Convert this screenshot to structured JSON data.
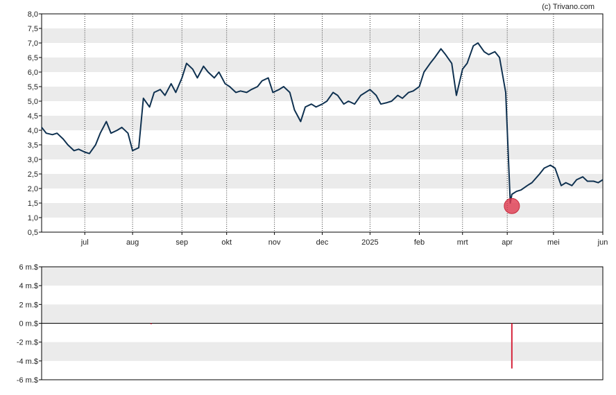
{
  "credit": "(c) Trivano.com",
  "colors": {
    "line": "#0f3150",
    "band": "#ebebeb",
    "marker": "#e03a4f",
    "volume_bar": "#d6243b",
    "frame": "#000000"
  },
  "chart_data": [
    {
      "type": "line",
      "title": "",
      "xlabel": "",
      "ylabel": "",
      "ylim": [
        0.5,
        8.0
      ],
      "y_ticks": [
        "0,5",
        "1,0",
        "1,5",
        "2,0",
        "2,5",
        "3,0",
        "3,5",
        "4,0",
        "4,5",
        "5,0",
        "5,5",
        "6,0",
        "6,5",
        "7,0",
        "7,5",
        "8,0"
      ],
      "y_tick_values": [
        0.5,
        1.0,
        1.5,
        2.0,
        2.5,
        3.0,
        3.5,
        4.0,
        4.5,
        5.0,
        5.5,
        6.0,
        6.5,
        7.0,
        7.5,
        8.0
      ],
      "x_range": [
        "2024-06-03",
        "2025-06-02"
      ],
      "x_ticks": [
        {
          "label": "jul",
          "date": "2024-07-01"
        },
        {
          "label": "aug",
          "date": "2024-08-01"
        },
        {
          "label": "sep",
          "date": "2024-09-02"
        },
        {
          "label": "okt",
          "date": "2024-10-01"
        },
        {
          "label": "nov",
          "date": "2024-11-01"
        },
        {
          "label": "dec",
          "date": "2024-12-02"
        },
        {
          "label": "2025",
          "date": "2025-01-02"
        },
        {
          "label": "feb",
          "date": "2025-02-03"
        },
        {
          "label": "mrt",
          "date": "2025-03-03"
        },
        {
          "label": "apr",
          "date": "2025-04-01"
        },
        {
          "label": "mei",
          "date": "2025-05-01"
        },
        {
          "label": "jun",
          "date": "2025-06-02"
        }
      ],
      "grid": "horizontal bands, dotted vertical lines at month ticks",
      "series": [
        {
          "x": [
            "2024-06-03",
            "2024-06-06",
            "2024-06-10",
            "2024-06-13",
            "2024-06-17",
            "2024-06-20",
            "2024-06-24",
            "2024-06-27",
            "2024-07-01",
            "2024-07-04",
            "2024-07-08",
            "2024-07-11",
            "2024-07-15",
            "2024-07-18",
            "2024-07-22",
            "2024-07-25",
            "2024-07-29",
            "2024-08-01",
            "2024-08-05",
            "2024-08-08",
            "2024-08-12",
            "2024-08-15",
            "2024-08-19",
            "2024-08-22",
            "2024-08-26",
            "2024-08-29",
            "2024-09-02",
            "2024-09-05",
            "2024-09-09",
            "2024-09-12",
            "2024-09-16",
            "2024-09-19",
            "2024-09-23",
            "2024-09-26",
            "2024-09-30",
            "2024-10-03",
            "2024-10-07",
            "2024-10-10",
            "2024-10-14",
            "2024-10-17",
            "2024-10-21",
            "2024-10-24",
            "2024-10-28",
            "2024-10-31",
            "2024-11-04",
            "2024-11-07",
            "2024-11-11",
            "2024-11-14",
            "2024-11-18",
            "2024-11-21",
            "2024-11-25",
            "2024-11-28",
            "2024-12-02",
            "2024-12-05",
            "2024-12-09",
            "2024-12-12",
            "2024-12-16",
            "2024-12-19",
            "2024-12-23",
            "2024-12-27",
            "2025-01-02",
            "2025-01-06",
            "2025-01-09",
            "2025-01-13",
            "2025-01-16",
            "2025-01-20",
            "2025-01-23",
            "2025-01-27",
            "2025-01-30",
            "2025-02-03",
            "2025-02-06",
            "2025-02-10",
            "2025-02-13",
            "2025-02-17",
            "2025-02-20",
            "2025-02-24",
            "2025-02-27",
            "2025-03-03",
            "2025-03-06",
            "2025-03-10",
            "2025-03-13",
            "2025-03-17",
            "2025-03-20",
            "2025-03-24",
            "2025-03-27",
            "2025-03-31",
            "2025-04-03",
            "2025-04-04",
            "2025-04-07",
            "2025-04-10",
            "2025-04-14",
            "2025-04-17",
            "2025-04-22",
            "2025-04-25",
            "2025-04-29",
            "2025-05-02",
            "2025-05-06",
            "2025-05-09",
            "2025-05-13",
            "2025-05-16",
            "2025-05-20",
            "2025-05-23",
            "2025-05-27",
            "2025-05-30",
            "2025-06-02"
          ],
          "values": [
            4.1,
            3.9,
            3.85,
            3.9,
            3.7,
            3.5,
            3.3,
            3.35,
            3.25,
            3.2,
            3.5,
            3.9,
            4.3,
            3.9,
            4.0,
            4.1,
            3.9,
            3.3,
            3.4,
            5.1,
            4.8,
            5.3,
            5.4,
            5.2,
            5.6,
            5.3,
            5.8,
            6.3,
            6.1,
            5.8,
            6.2,
            6.0,
            5.8,
            6.0,
            5.6,
            5.5,
            5.3,
            5.35,
            5.3,
            5.4,
            5.5,
            5.7,
            5.8,
            5.3,
            5.4,
            5.5,
            5.3,
            4.7,
            4.3,
            4.8,
            4.9,
            4.8,
            4.9,
            5.0,
            5.3,
            5.2,
            4.9,
            5.0,
            4.9,
            5.2,
            5.4,
            5.2,
            4.9,
            4.95,
            5.0,
            5.2,
            5.1,
            5.3,
            5.35,
            5.5,
            6.0,
            6.3,
            6.5,
            6.8,
            6.6,
            6.3,
            5.2,
            6.1,
            6.3,
            6.9,
            7.0,
            6.7,
            6.6,
            6.7,
            6.5,
            5.3,
            1.5,
            1.8,
            1.9,
            1.95,
            2.1,
            2.2,
            2.5,
            2.7,
            2.8,
            2.7,
            2.1,
            2.2,
            2.1,
            2.3,
            2.4,
            2.25,
            2.25,
            2.2,
            2.3
          ]
        }
      ],
      "annotations": [
        {
          "type": "marker",
          "x": "2025-04-04",
          "y": 1.4
        }
      ]
    },
    {
      "type": "bar",
      "title": "",
      "ylim": [
        -6,
        6
      ],
      "y_ticks": [
        "6 m.$",
        "4 m.$",
        "2 m.$",
        "0 m.$",
        "-2 m.$",
        "-4 m.$",
        "-6 m.$"
      ],
      "y_tick_values": [
        6,
        4,
        2,
        0,
        -2,
        -4,
        -6
      ],
      "series": [
        {
          "x": [
            "2024-08-13",
            "2025-04-04"
          ],
          "values": [
            -0.1,
            -4.8
          ]
        }
      ]
    }
  ]
}
